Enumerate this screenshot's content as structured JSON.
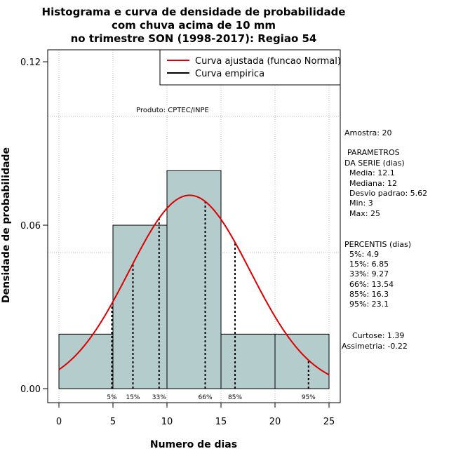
{
  "chart_data": {
    "type": "histogram",
    "title_lines": [
      "Histograma e curva de densidade de probabilidade",
      "com chuva acima de 10 mm",
      "no trimestre SON (1998-2017): Regiao 54"
    ],
    "xlabel": "Numero de dias",
    "ylabel": "Densidade de probabilidade",
    "xlim": [
      -1,
      26
    ],
    "ylim": [
      0,
      0.12
    ],
    "x_ticks": [
      0,
      5,
      10,
      15,
      20,
      25
    ],
    "y_ticks": [
      0.0,
      0.06,
      0.12
    ],
    "y_tick_labels": [
      "0.00",
      "0.06",
      "0.12"
    ],
    "grid_x": [
      0,
      5,
      10,
      15,
      20,
      25
    ],
    "grid_y": [
      0.05,
      0.1
    ],
    "bins": [
      {
        "start": 0,
        "end": 5,
        "density": 0.02
      },
      {
        "start": 5,
        "end": 10,
        "density": 0.06
      },
      {
        "start": 10,
        "end": 15,
        "density": 0.08
      },
      {
        "start": 15,
        "end": 20,
        "density": 0.02
      },
      {
        "start": 20,
        "end": 25,
        "density": 0.02
      }
    ],
    "normal_fit": {
      "mean": 12.1,
      "sd": 5.62,
      "from": 0,
      "to": 25
    },
    "percentile_lines": [
      {
        "label": "5%",
        "x": 4.9
      },
      {
        "label": "15%",
        "x": 6.85
      },
      {
        "label": "33%",
        "x": 9.27
      },
      {
        "label": "66%",
        "x": 13.54
      },
      {
        "label": "85%",
        "x": 16.3
      },
      {
        "label": "95%",
        "x": 23.1
      }
    ],
    "legend": [
      {
        "label": "Curva ajustada (funcao Normal)",
        "color": "#dd0000"
      },
      {
        "label": "Curva empirica",
        "color": "#000000"
      }
    ],
    "legend_position": "top-right",
    "annotation": "Produto: CPTEC/INPE",
    "colors": {
      "bar_fill": "#b4cccc",
      "curve": "#dd0000",
      "grid": "#bbbbbb"
    }
  },
  "side_panel": {
    "amostra": "Amostra: 20",
    "params_heading": [
      "PARAMETROS",
      "DA SERIE (dias)"
    ],
    "params": [
      "Media: 12.1",
      "Mediana: 12",
      "Desvio padrao: 5.62",
      "Min: 3",
      "Max: 25"
    ],
    "percentis_heading": "PERCENTIS (dias)",
    "percentis": [
      "5%: 4.9",
      "15%: 6.85",
      "33%: 9.27",
      "66%: 13.54",
      "85%: 16.3",
      "95%: 23.1"
    ],
    "curtose": "Curtose: 1.39",
    "assimetria": "Assimetria: -0.22"
  }
}
